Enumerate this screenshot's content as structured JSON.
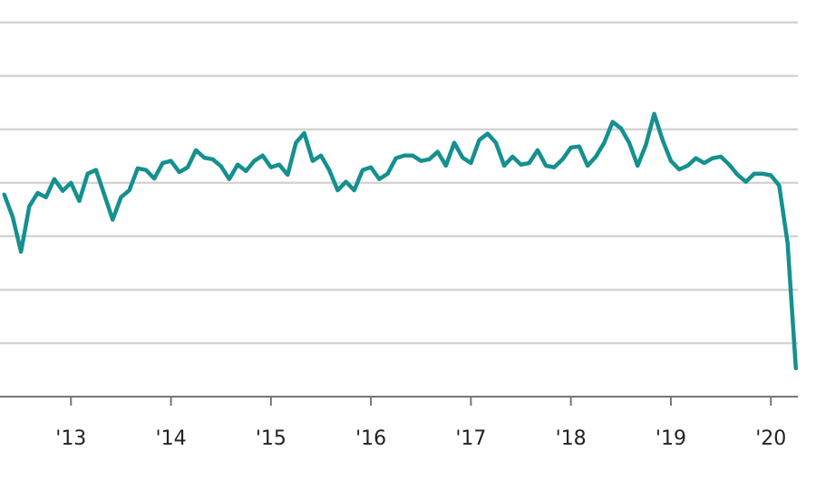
{
  "chart_data": {
    "type": "line",
    "x": [
      2012.333,
      2012.417,
      2012.5,
      2012.583,
      2012.667,
      2012.75,
      2012.833,
      2012.917,
      2013.0,
      2013.083,
      2013.167,
      2013.25,
      2013.333,
      2013.417,
      2013.5,
      2013.583,
      2013.667,
      2013.75,
      2013.833,
      2013.917,
      2014.0,
      2014.083,
      2014.167,
      2014.25,
      2014.333,
      2014.417,
      2014.5,
      2014.583,
      2014.667,
      2014.75,
      2014.833,
      2014.917,
      2015.0,
      2015.083,
      2015.167,
      2015.25,
      2015.333,
      2015.417,
      2015.5,
      2015.583,
      2015.667,
      2015.75,
      2015.833,
      2015.917,
      2016.0,
      2016.083,
      2016.167,
      2016.25,
      2016.333,
      2016.417,
      2016.5,
      2016.583,
      2016.667,
      2016.75,
      2016.833,
      2016.917,
      2017.0,
      2017.083,
      2017.167,
      2017.25,
      2017.333,
      2017.417,
      2017.5,
      2017.583,
      2017.667,
      2017.75,
      2017.833,
      2017.917,
      2018.0,
      2018.083,
      2018.167,
      2018.25,
      2018.333,
      2018.417,
      2018.5,
      2018.583,
      2018.667,
      2018.75,
      2018.833,
      2018.917,
      2019.0,
      2019.083,
      2019.167,
      2019.25,
      2019.333,
      2019.417,
      2019.5,
      2019.583,
      2019.667,
      2019.75,
      2019.833,
      2019.917,
      2020.0,
      2020.083,
      2020.167,
      2020.25
    ],
    "values": [
      3.78,
      3.36,
      2.71,
      3.56,
      3.81,
      3.73,
      4.07,
      3.85,
      4.0,
      3.66,
      4.17,
      4.24,
      3.78,
      3.31,
      3.73,
      3.86,
      4.27,
      4.24,
      4.08,
      4.37,
      4.41,
      4.2,
      4.29,
      4.61,
      4.47,
      4.44,
      4.31,
      4.07,
      4.34,
      4.22,
      4.41,
      4.51,
      4.29,
      4.34,
      4.15,
      4.75,
      4.93,
      4.41,
      4.51,
      4.24,
      3.86,
      4.02,
      3.86,
      4.24,
      4.29,
      4.07,
      4.17,
      4.46,
      4.51,
      4.51,
      4.41,
      4.44,
      4.58,
      4.32,
      4.75,
      4.47,
      4.37,
      4.8,
      4.92,
      4.75,
      4.32,
      4.49,
      4.34,
      4.37,
      4.61,
      4.32,
      4.29,
      4.44,
      4.66,
      4.68,
      4.32,
      4.49,
      4.75,
      5.14,
      5.02,
      4.75,
      4.32,
      4.71,
      5.29,
      4.8,
      4.41,
      4.25,
      4.32,
      4.46,
      4.37,
      4.46,
      4.49,
      4.34,
      4.15,
      4.02,
      4.17,
      4.17,
      4.14,
      3.95,
      2.88,
      0.53
    ],
    "color": "#14908f",
    "xlim": [
      2012.29,
      2020.27
    ],
    "xticks": [
      {
        "value": 2013,
        "label": "'13"
      },
      {
        "value": 2014,
        "label": "'14"
      },
      {
        "value": 2015,
        "label": "'15"
      },
      {
        "value": 2016,
        "label": "'16"
      },
      {
        "value": 2017,
        "label": "'17"
      },
      {
        "value": 2018,
        "label": "'18"
      },
      {
        "value": 2019,
        "label": "'19"
      },
      {
        "value": 2020,
        "label": "'20"
      }
    ],
    "ylim": [
      0,
      7.42
    ],
    "yticks": [
      1,
      2,
      3,
      4,
      5,
      6,
      7
    ],
    "grid": true
  }
}
